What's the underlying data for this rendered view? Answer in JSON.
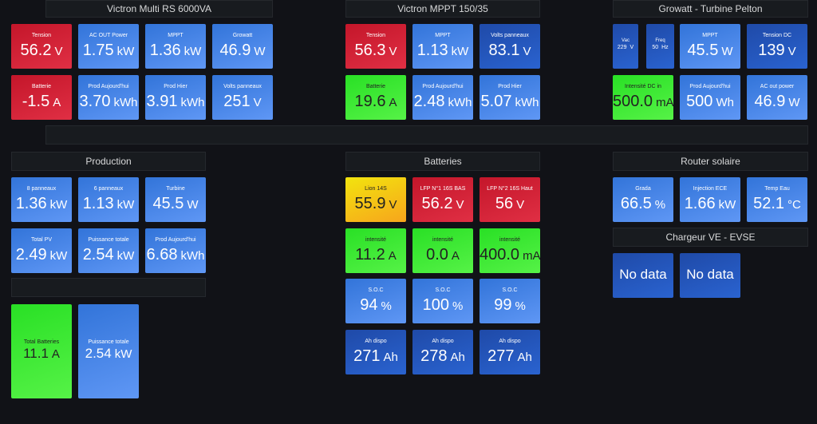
{
  "panels": [
    {
      "title": "Victron Multi RS 6000VA",
      "tiles": [
        {
          "label": "Tension",
          "value": "56.2",
          "unit": "V",
          "color": "red"
        },
        {
          "label": "AC OUT Power",
          "value": "1.75",
          "unit": "kW",
          "color": "blue"
        },
        {
          "label": "MPPT",
          "value": "1.36",
          "unit": "kW",
          "color": "blue"
        },
        {
          "label": "Growatt",
          "value": "46.9",
          "unit": "W",
          "color": "blue"
        },
        {
          "label": "Batterie",
          "value": "-1.5",
          "unit": "A",
          "color": "red"
        },
        {
          "label": "Prod Aujourd'hui",
          "value": "3.70",
          "unit": "kWh",
          "color": "blue"
        },
        {
          "label": "Prod Hier",
          "value": "3.91",
          "unit": "kWh",
          "color": "blue"
        },
        {
          "label": "Volts panneaux",
          "value": "251",
          "unit": "V",
          "color": "blue"
        }
      ]
    },
    {
      "title": "Victron MPPT 150/35",
      "tiles": [
        {
          "label": "Tension",
          "value": "56.3",
          "unit": "V",
          "color": "red"
        },
        {
          "label": "MPPT",
          "value": "1.13",
          "unit": "kW",
          "color": "blue"
        },
        {
          "label": "Volts panneaux",
          "value": "83.1",
          "unit": "V",
          "color": "dark"
        },
        {
          "label": "Batterie",
          "value": "19.6",
          "unit": "A",
          "color": "green"
        },
        {
          "label": "Prod Aujourd'hui",
          "value": "2.48",
          "unit": "kWh",
          "color": "blue"
        },
        {
          "label": "Prod Hier",
          "value": "5.07",
          "unit": "kWh",
          "color": "blue"
        }
      ]
    },
    {
      "title": "Growatt - Turbine Pelton",
      "tiles": [
        {
          "label": "Vac",
          "value": "229",
          "unit": "V",
          "color": "dark"
        },
        {
          "label": "Freq",
          "value": "50",
          "unit": "Hz",
          "color": "dark"
        },
        {
          "label": "MPPT",
          "value": "45.5",
          "unit": "W",
          "color": "blue"
        },
        {
          "label": "Tension DC",
          "value": "139",
          "unit": "V",
          "color": "dark"
        },
        {
          "label": "Intensité DC in",
          "value": "500.0",
          "unit": "mA",
          "color": "green"
        },
        {
          "label": "Prod Aujourd'hui",
          "value": "500",
          "unit": "Wh",
          "color": "blue"
        },
        {
          "label": "AC out power",
          "value": "46.9",
          "unit": "W",
          "color": "blue"
        }
      ]
    },
    {
      "title": "Production",
      "tiles": [
        {
          "label": "8 panneaux",
          "value": "1.36",
          "unit": "kW",
          "color": "blue"
        },
        {
          "label": "6 panneaux",
          "value": "1.13",
          "unit": "kW",
          "color": "blue"
        },
        {
          "label": "Turbine",
          "value": "45.5",
          "unit": "W",
          "color": "blue"
        },
        {
          "label": "Total PV",
          "value": "2.49",
          "unit": "kW",
          "color": "blue"
        },
        {
          "label": "Puissance totale",
          "value": "2.54",
          "unit": "kW",
          "color": "blue"
        },
        {
          "label": "Prod Aujourd'hui",
          "value": "6.68",
          "unit": "kWh",
          "color": "blue"
        }
      ]
    },
    {
      "title": "Batteries",
      "tiles": [
        {
          "label": "Lion 14S",
          "value": "55.9",
          "unit": "V",
          "color": "yellow"
        },
        {
          "label": "LFP N°1 16S BAS",
          "value": "56.2",
          "unit": "V",
          "color": "red"
        },
        {
          "label": "LFP N°2 16S Haut",
          "value": "56",
          "unit": "V",
          "color": "red"
        },
        {
          "label": "intensité",
          "value": "11.2",
          "unit": "A",
          "color": "green"
        },
        {
          "label": "intensité",
          "value": "0.0",
          "unit": "A",
          "color": "green"
        },
        {
          "label": "intensité",
          "value": "400.0",
          "unit": "mA",
          "color": "green"
        },
        {
          "label": "S.O.C",
          "value": "94",
          "unit": "%",
          "color": "blue"
        },
        {
          "label": "S.O.C",
          "value": "100",
          "unit": "%",
          "color": "blue"
        },
        {
          "label": "S.O.C",
          "value": "99",
          "unit": "%",
          "color": "blue"
        },
        {
          "label": "Ah dispo",
          "value": "271",
          "unit": "Ah",
          "color": "dark"
        },
        {
          "label": "Ah dispo",
          "value": "278",
          "unit": "Ah",
          "color": "dark"
        },
        {
          "label": "Ah dispo",
          "value": "277",
          "unit": "Ah",
          "color": "dark"
        }
      ]
    },
    {
      "title": "Router solaire",
      "tiles": [
        {
          "label": "Grada",
          "value": "66.5",
          "unit": "%",
          "color": "blue"
        },
        {
          "label": "Injection ECE",
          "value": "1.66",
          "unit": "kW",
          "color": "blue"
        },
        {
          "label": "Temp Eau",
          "value": "52.1",
          "unit": "°C",
          "color": "blue"
        }
      ]
    },
    {
      "title": "Chargeur VE - EVSE",
      "tiles": [
        {
          "value": "No data",
          "color": "dark"
        },
        {
          "value": "No data",
          "color": "dark"
        }
      ]
    },
    {
      "tiles": [
        {
          "label": "Total Batteries",
          "value": "11.1",
          "unit": "A",
          "color": "green"
        },
        {
          "label": "Puissance totale",
          "value": "2.54",
          "unit": "kW",
          "color": "blue"
        }
      ]
    }
  ]
}
